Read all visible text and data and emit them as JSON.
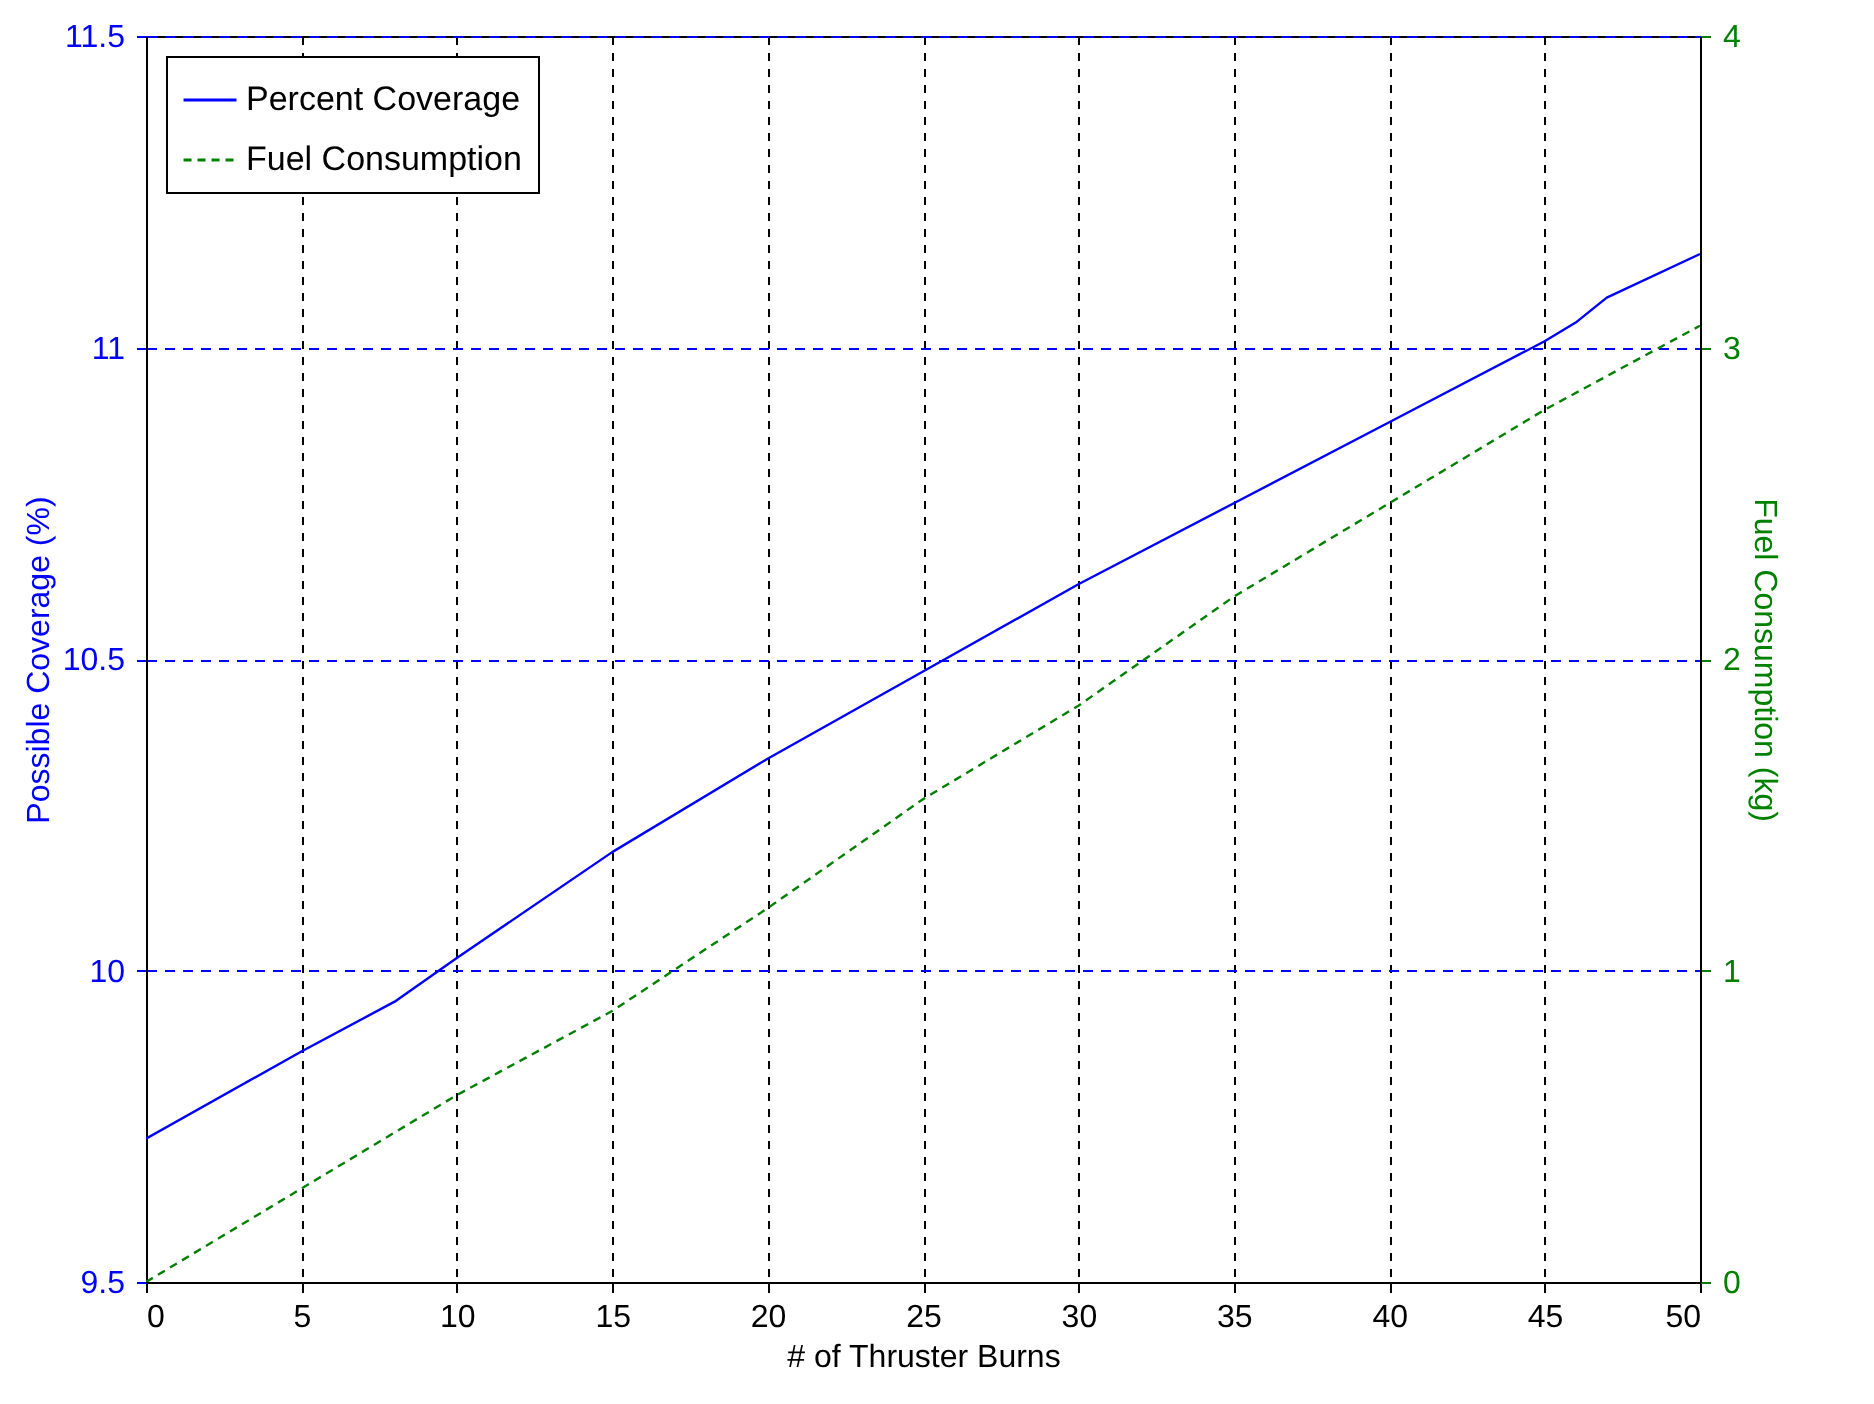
{
  "chart_data": {
    "type": "line",
    "xlabel": "# of Thruster Burns",
    "ylabel": "Possible Coverage (%)",
    "y2label": "Fuel Consumption (kg)",
    "xlim": [
      0,
      50
    ],
    "xticks": [
      0,
      5,
      10,
      15,
      20,
      25,
      30,
      35,
      40,
      45,
      50
    ],
    "ylim": [
      9.5,
      11.5
    ],
    "yticks": [
      9.5,
      10,
      10.5,
      11,
      11.5
    ],
    "y2lim": [
      0,
      4
    ],
    "y2ticks": [
      0,
      1,
      2,
      3,
      4
    ],
    "grid": true,
    "legend": "top left",
    "series": [
      {
        "name": "Percent Coverage",
        "color": "#0000ff",
        "line_style": "solid",
        "x": [
          0,
          5,
          8,
          10,
          15,
          20,
          25,
          30,
          35,
          40,
          45,
          46,
          47,
          50
        ],
        "values": [
          9.73,
          9.87,
          9.95,
          10.02,
          10.19,
          10.34,
          10.48,
          10.62,
          10.75,
          10.88,
          11.01,
          11.04,
          11.08,
          11.15
        ]
      },
      {
        "name": "Fuel Consumption",
        "color": "#008000",
        "line_style": "dashed",
        "axis": "y2",
        "x": [
          0,
          5,
          10,
          15,
          20,
          25,
          30,
          35,
          40,
          45,
          50
        ],
        "values": [
          0,
          0.3,
          0.6,
          0.87,
          1.2,
          1.55,
          1.85,
          2.2,
          2.5,
          2.8,
          3.07
        ]
      }
    ]
  }
}
